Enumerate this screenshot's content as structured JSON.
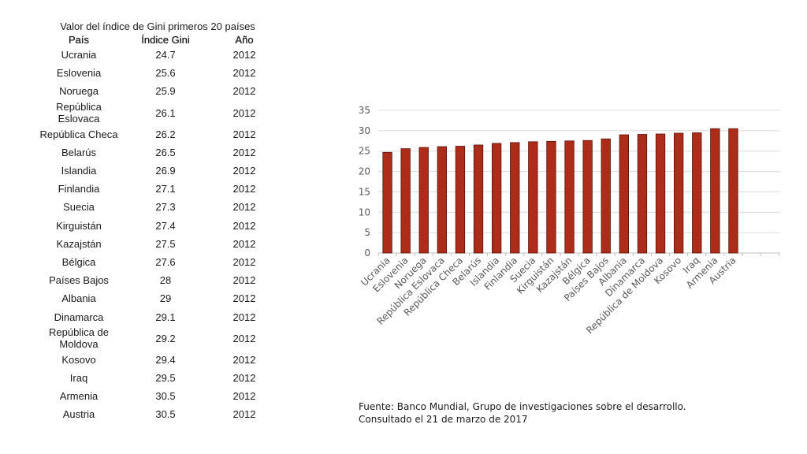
{
  "table": {
    "title": "Valor del índice de Gini primeros 20 países",
    "headers": [
      "País",
      "Índice Gini",
      "Año"
    ],
    "rows": [
      [
        "Ucrania",
        "24.7",
        "2012"
      ],
      [
        "Eslovenia",
        "25.6",
        "2012"
      ],
      [
        "Noruega",
        "25.9",
        "2012"
      ],
      [
        "República Eslovaca",
        "26.1",
        "2012"
      ],
      [
        "República Checa",
        "26.2",
        "2012"
      ],
      [
        "Belarús",
        "26.5",
        "2012"
      ],
      [
        "Islandia",
        "26.9",
        "2012"
      ],
      [
        "Finlandia",
        "27.1",
        "2012"
      ],
      [
        "Suecia",
        "27.3",
        "2012"
      ],
      [
        "Kirguistán",
        "27.4",
        "2012"
      ],
      [
        "Kazajstán",
        "27.5",
        "2012"
      ],
      [
        "Bélgica",
        "27.6",
        "2012"
      ],
      [
        "Países Bajos",
        "28",
        "2012"
      ],
      [
        "Albania",
        "29",
        "2012"
      ],
      [
        "Dinamarca",
        "29.1",
        "2012"
      ],
      [
        "República de Moldova",
        "29.2",
        "2012"
      ],
      [
        "Kosovo",
        "29.4",
        "2012"
      ],
      [
        "Iraq",
        "29.5",
        "2012"
      ],
      [
        "Armenia",
        "30.5",
        "2012"
      ],
      [
        "Austria",
        "30.5",
        "2012"
      ]
    ]
  },
  "chart_data": {
    "type": "bar",
    "categories": [
      "Ucrania",
      "Eslovenia",
      "Noruega",
      "República Eslovaca",
      "República Checa",
      "Belarús",
      "Islandia",
      "Finlandia",
      "Suecia",
      "Kirguistán",
      "Kazajstán",
      "Bélgica",
      "Países Bajos",
      "Albania",
      "Dinamarca",
      "República de Moldova",
      "Kosovo",
      "Iraq",
      "Armenia",
      "Austria"
    ],
    "values": [
      24.7,
      25.6,
      25.9,
      26.1,
      26.2,
      26.5,
      26.9,
      27.1,
      27.3,
      27.4,
      27.5,
      27.6,
      28,
      29,
      29.1,
      29.2,
      29.4,
      29.5,
      30.5,
      30.5
    ],
    "title": "",
    "xlabel": "",
    "ylabel": "",
    "ylim": [
      0,
      35
    ],
    "yticks": [
      0,
      5,
      10,
      15,
      20,
      25,
      30,
      35
    ],
    "grid": true,
    "legend": "none",
    "bar_color": "#b5301c",
    "bar_edge_color": "#5a1208"
  },
  "source": {
    "line1": "Fuente: Banco Mundial, Grupo de investigaciones sobre el desarrollo.",
    "line2": "Consultado el 21 de marzo de 2017"
  }
}
